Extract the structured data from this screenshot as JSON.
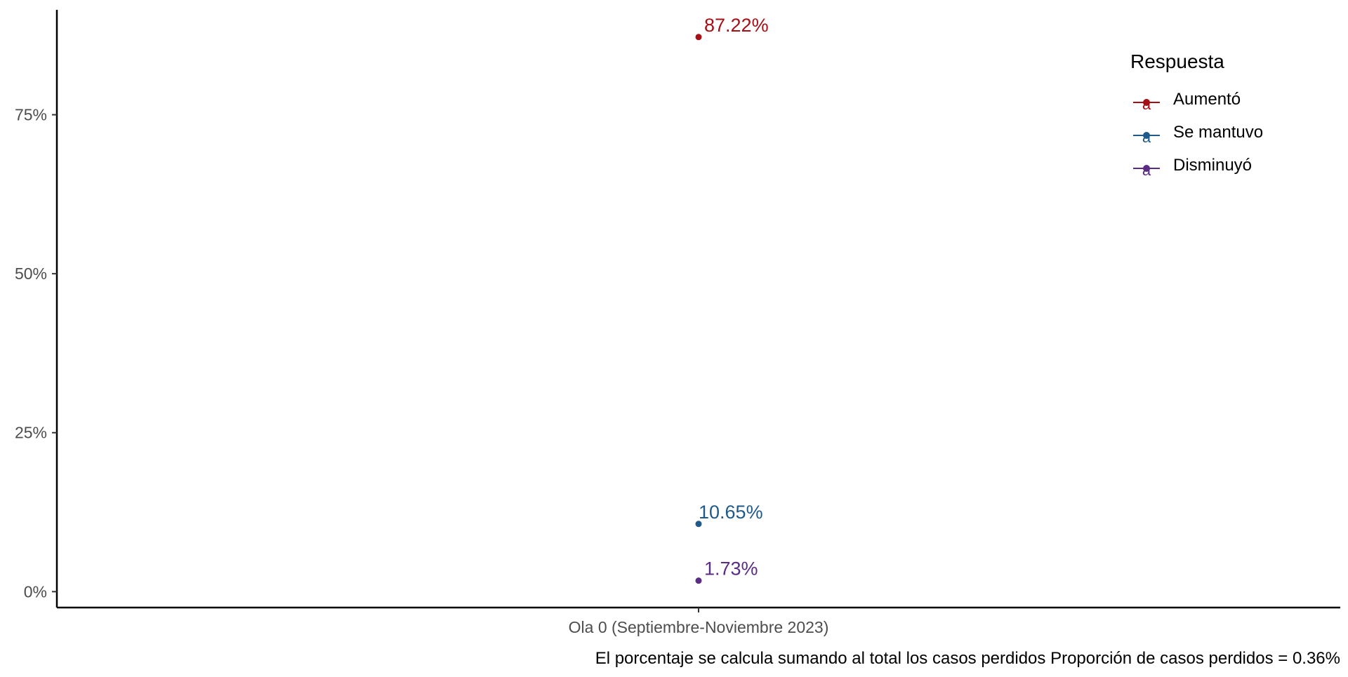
{
  "chart_data": {
    "type": "scatter",
    "title": "",
    "xlabel": "",
    "ylabel": "",
    "categories": [
      "Ola 0 (Septiembre-Noviembre 2023)"
    ],
    "ylim": [
      -0.025,
      0.915
    ],
    "y_ticks": [
      {
        "value": 0,
        "label": "0%"
      },
      {
        "value": 0.25,
        "label": "25%"
      },
      {
        "value": 0.5,
        "label": "50%"
      },
      {
        "value": 0.75,
        "label": "75%"
      }
    ],
    "grid": false,
    "legend": {
      "title": "Respuesta",
      "placement": "top-right"
    },
    "series": [
      {
        "name": "Aumentó",
        "color": "#A50F15",
        "values": [
          0.8722
        ],
        "labels": [
          "87.22%"
        ]
      },
      {
        "name": "Se mantuvo",
        "color": "#1F5A8B",
        "values": [
          0.1065
        ],
        "labels": [
          "10.65%"
        ]
      },
      {
        "name": "Disminuyó",
        "color": "#5B2C83",
        "values": [
          0.0173
        ],
        "labels": [
          "1.73%"
        ]
      }
    ],
    "caption": "El porcentaje se calcula sumando al total los casos perdidos Proporción de casos perdidos = 0.36%"
  }
}
